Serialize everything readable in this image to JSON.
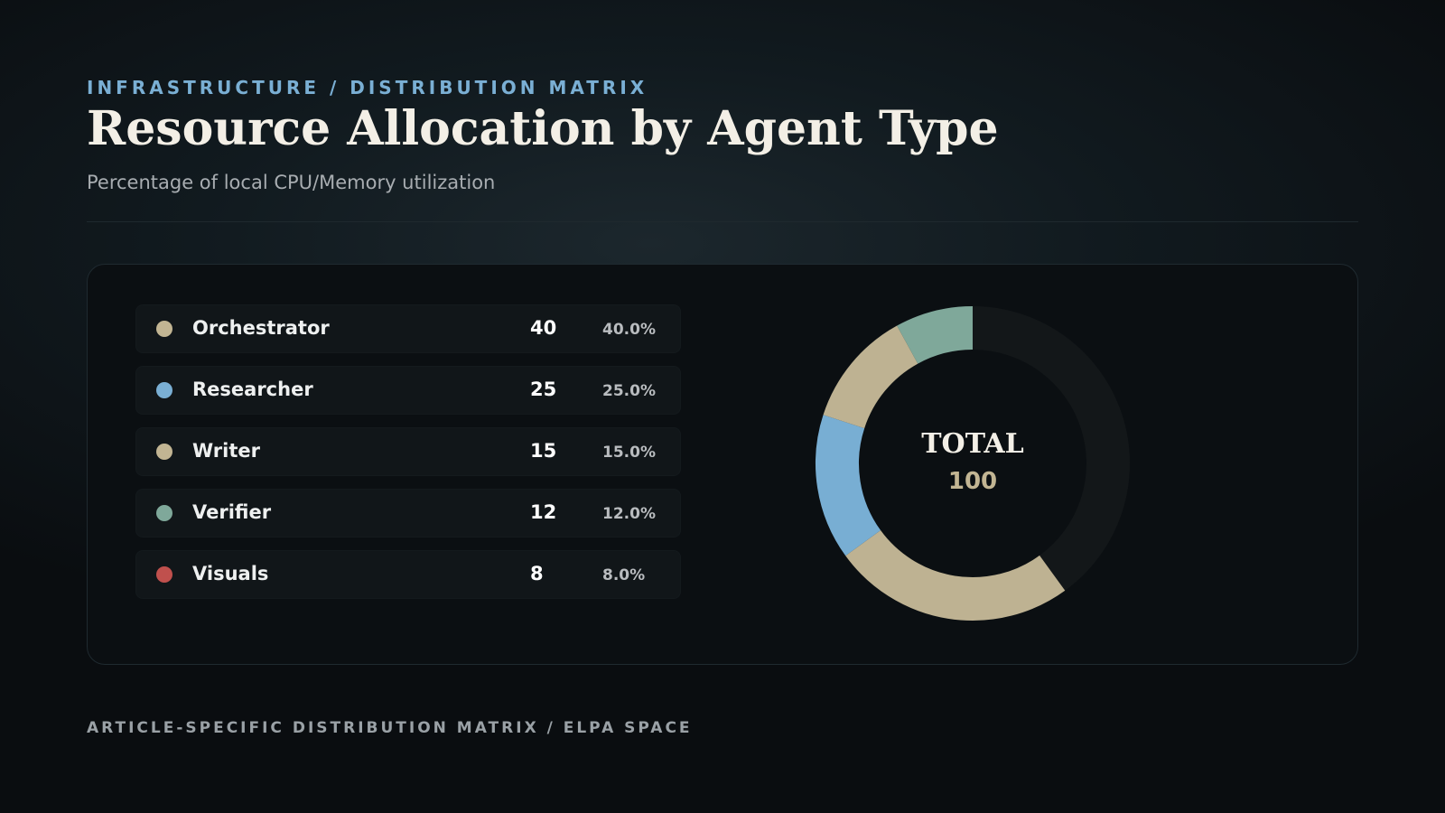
{
  "kicker": "INFRASTRUCTURE / DISTRIBUTION MATRIX",
  "chart_data": {
    "type": "donut",
    "title": "Resource Allocation by Agent Type",
    "subtitle": "Percentage of local CPU/Memory utilization",
    "categories": [
      "Orchestrator",
      "Researcher",
      "Writer",
      "Verifier",
      "Visuals"
    ],
    "values": [
      40,
      25,
      15,
      12,
      8
    ],
    "value_labels": [
      "40.0%",
      "25.0%",
      "15.0%",
      "12.0%",
      "8.0%"
    ],
    "colors": [
      "#c2b593",
      "#7aafd4",
      "#c2b593",
      "#7fa89a",
      "#c0504d"
    ],
    "slice_colors": [
      "#131719",
      "#beb292",
      "#78aed3",
      "#beb292",
      "#7fa89a"
    ],
    "center_label": "TOTAL",
    "total": 100
  },
  "footer": "ARTICLE-SPECIFIC DISTRIBUTION MATRIX / ELPA SPACE"
}
